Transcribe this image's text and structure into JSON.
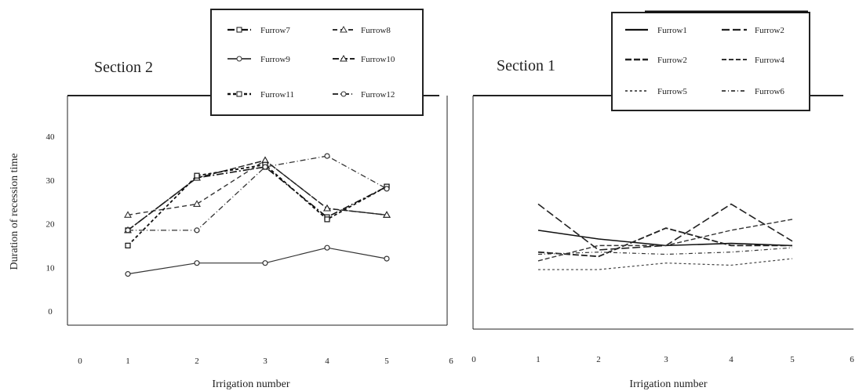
{
  "shared": {
    "ylabel": "Duration of recession time",
    "xlabel": "Irrigation number"
  },
  "chart_data": [
    {
      "type": "line",
      "title": "Section 2",
      "xlabel": "Irrigation number",
      "ylabel": "Duration of recession time",
      "xlim": [
        0,
        6
      ],
      "ylim": [
        0,
        40
      ],
      "xticks": [
        "0",
        "1",
        "2",
        "3",
        "4",
        "5",
        "6"
      ],
      "yticks": [
        "0",
        "10",
        "20",
        "30",
        "40"
      ],
      "grid": false,
      "legend_position": "top-center",
      "x": [
        1,
        2,
        3,
        4,
        5
      ],
      "series": [
        {
          "name": "Furrow7",
          "values": [
            18.5,
            30.5,
            33.0,
            21.5,
            28.5
          ],
          "color": "#111111",
          "dash": "9 3 2 3",
          "marker": "square",
          "width": 1.6
        },
        {
          "name": "Furrow8",
          "values": [
            22.0,
            24.5,
            34.5,
            23.5,
            22.0
          ],
          "color": "#333333",
          "dash": "6 4",
          "marker": "triangle",
          "width": 1.4
        },
        {
          "name": "Furrow9",
          "values": [
            8.5,
            11.0,
            11.0,
            14.5,
            12.0
          ],
          "color": "#333333",
          "dash": "",
          "marker": "circle",
          "width": 1.2
        },
        {
          "name": "Furrow10",
          "values": [
            18.5,
            30.5,
            34.5,
            23.5,
            22.0
          ],
          "color": "#222222",
          "dash": "8 3",
          "marker": "triangle",
          "width": 1.5
        },
        {
          "name": "Furrow11",
          "values": [
            15.0,
            31.0,
            33.5,
            21.0,
            28.5
          ],
          "color": "#111111",
          "dash": "4 3",
          "marker": "square",
          "width": 1.8
        },
        {
          "name": "Furrow12",
          "values": [
            18.5,
            18.5,
            33.0,
            35.5,
            28.0
          ],
          "color": "#333333",
          "dash": "7 3 1 3",
          "marker": "circle",
          "width": 1.3
        }
      ]
    },
    {
      "type": "line",
      "title": "Section 1",
      "xlabel": "Irrigation number",
      "ylabel": "Duration of recession time",
      "xlim": [
        0,
        6
      ],
      "ylim": [
        0,
        40
      ],
      "xticks": [
        "0",
        "1",
        "2",
        "3",
        "4",
        "5",
        "6"
      ],
      "yticks": [],
      "grid": false,
      "legend_position": "top-right",
      "x": [
        1,
        2,
        3,
        4,
        5
      ],
      "series": [
        {
          "name": "Furrow1",
          "values": [
            18.5,
            16.5,
            15.0,
            15.5,
            15.0
          ],
          "color": "#111111",
          "dash": "",
          "marker": "none",
          "width": 1.6
        },
        {
          "name": "Furrow2",
          "values": [
            24.5,
            14.0,
            15.0,
            24.5,
            16.0
          ],
          "color": "#222222",
          "dash": "10 4",
          "marker": "none",
          "width": 1.6
        },
        {
          "name": "Furrow2",
          "values": [
            13.5,
            12.5,
            19.0,
            15.0,
            15.0
          ],
          "color": "#222222",
          "dash": "8 3",
          "marker": "none",
          "width": 1.8
        },
        {
          "name": "Furrow4",
          "values": [
            11.5,
            15.0,
            15.0,
            18.5,
            21.0
          ],
          "color": "#333333",
          "dash": "6 3",
          "marker": "none",
          "width": 1.4
        },
        {
          "name": "Furrow5",
          "values": [
            9.5,
            9.5,
            11.0,
            10.5,
            12.0
          ],
          "color": "#444444",
          "dash": "3 3",
          "marker": "none",
          "width": 1.2
        },
        {
          "name": "Furrow6",
          "values": [
            13.0,
            13.5,
            13.0,
            13.5,
            14.5
          ],
          "color": "#333333",
          "dash": "5 3 1 3",
          "marker": "none",
          "width": 1.2
        }
      ]
    }
  ]
}
